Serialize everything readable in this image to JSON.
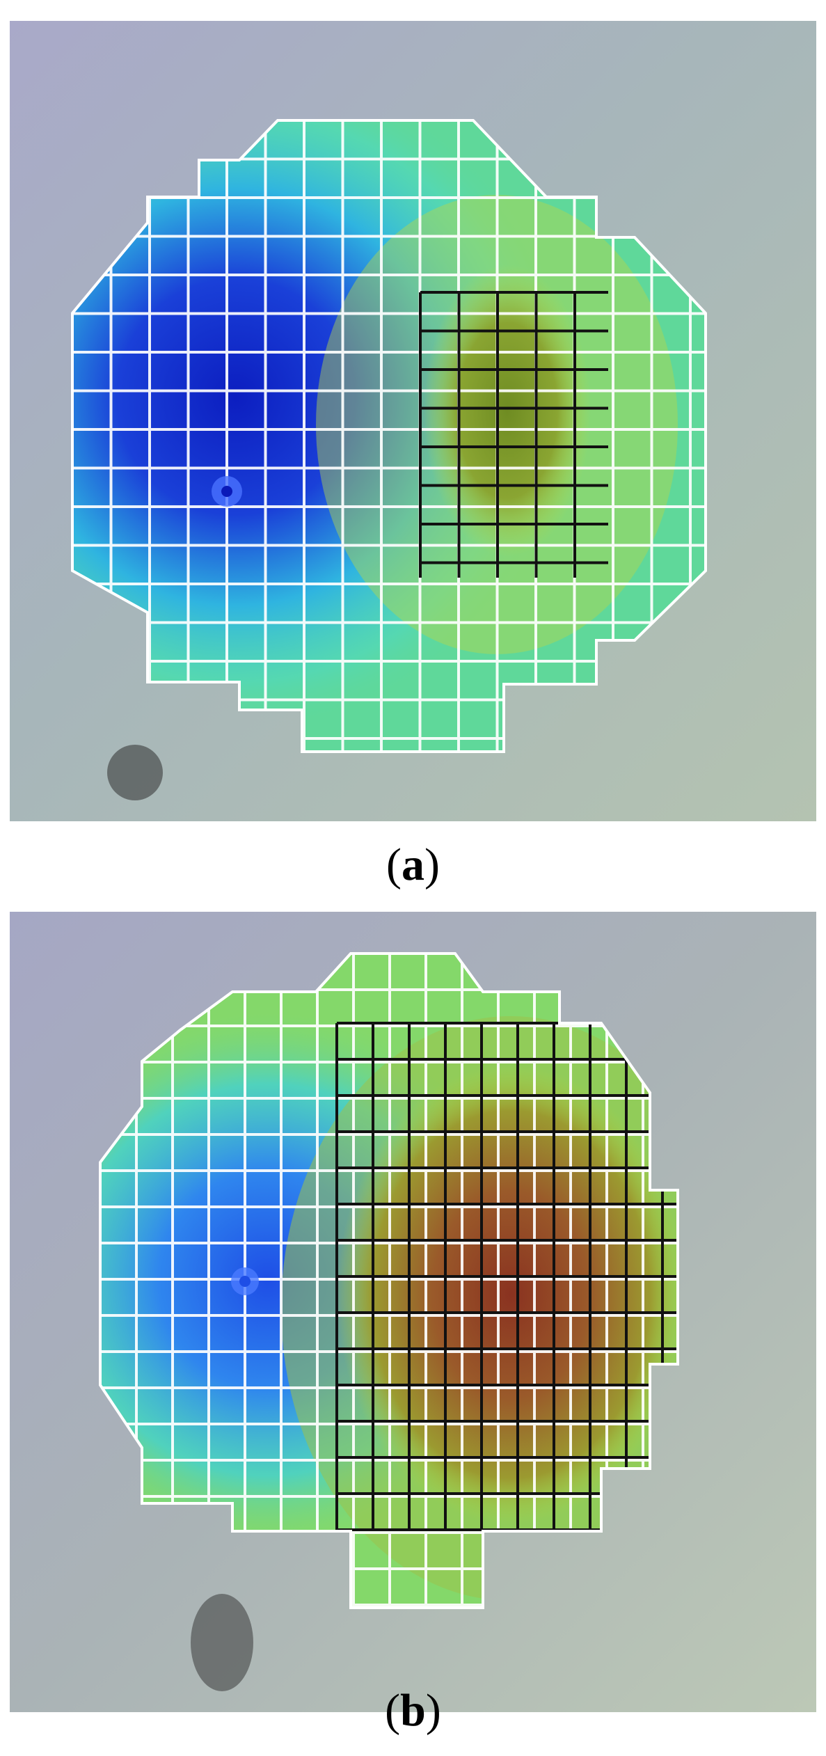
{
  "figure": {
    "panels": [
      {
        "label": "a",
        "colors": {
          "grid_light": "#ffffff",
          "grid_dark": "#111111",
          "low": "#1326c8",
          "mid": "#3fd8c8",
          "base": "#5fd89a",
          "high": "#7c9a2a"
        }
      },
      {
        "label": "b",
        "colors": {
          "grid_light": "#ffffff",
          "grid_dark": "#111111",
          "low": "#2f7cf0",
          "mid": "#3fd8c8",
          "base": "#84d86a",
          "high": "#8a3a26"
        }
      }
    ]
  }
}
